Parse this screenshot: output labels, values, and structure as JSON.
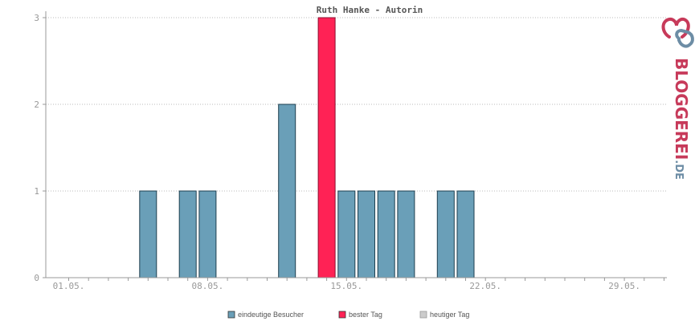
{
  "chart_data": {
    "type": "bar",
    "title": "Ruth Hanke - Autorin",
    "x_ticks": [
      "01.05.",
      "08.05.",
      "15.05.",
      "22.05.",
      "29.05."
    ],
    "y_ticks": [
      "0",
      "1",
      "2",
      "3"
    ],
    "ylim": [
      0,
      3
    ],
    "grid": true,
    "legend_position": "bottom",
    "days": [
      1,
      2,
      3,
      4,
      5,
      6,
      7,
      8,
      9,
      10,
      11,
      12,
      13,
      14,
      15,
      16,
      17,
      18,
      19,
      20,
      21,
      22,
      23,
      24,
      25,
      26,
      27,
      28,
      29,
      30,
      31
    ],
    "series": [
      {
        "name": "eindeutige Besucher",
        "color": "#6a9fb8",
        "values": [
          0,
          0,
          0,
          0,
          1,
          0,
          1,
          1,
          0,
          0,
          0,
          2,
          0,
          3,
          1,
          1,
          1,
          1,
          0,
          1,
          1,
          0,
          0,
          0,
          0,
          0,
          0,
          0,
          0,
          0,
          0
        ]
      },
      {
        "name": "bester Tag",
        "color": "#ff2255",
        "best_day": 14
      },
      {
        "name": "heutiger Tag",
        "color": "#cccccc"
      }
    ]
  },
  "logo": {
    "main": "BLOGGEREI",
    "suffix": ".DE",
    "colors": {
      "red": "#c73a5a",
      "blue": "#6d8da5"
    }
  }
}
